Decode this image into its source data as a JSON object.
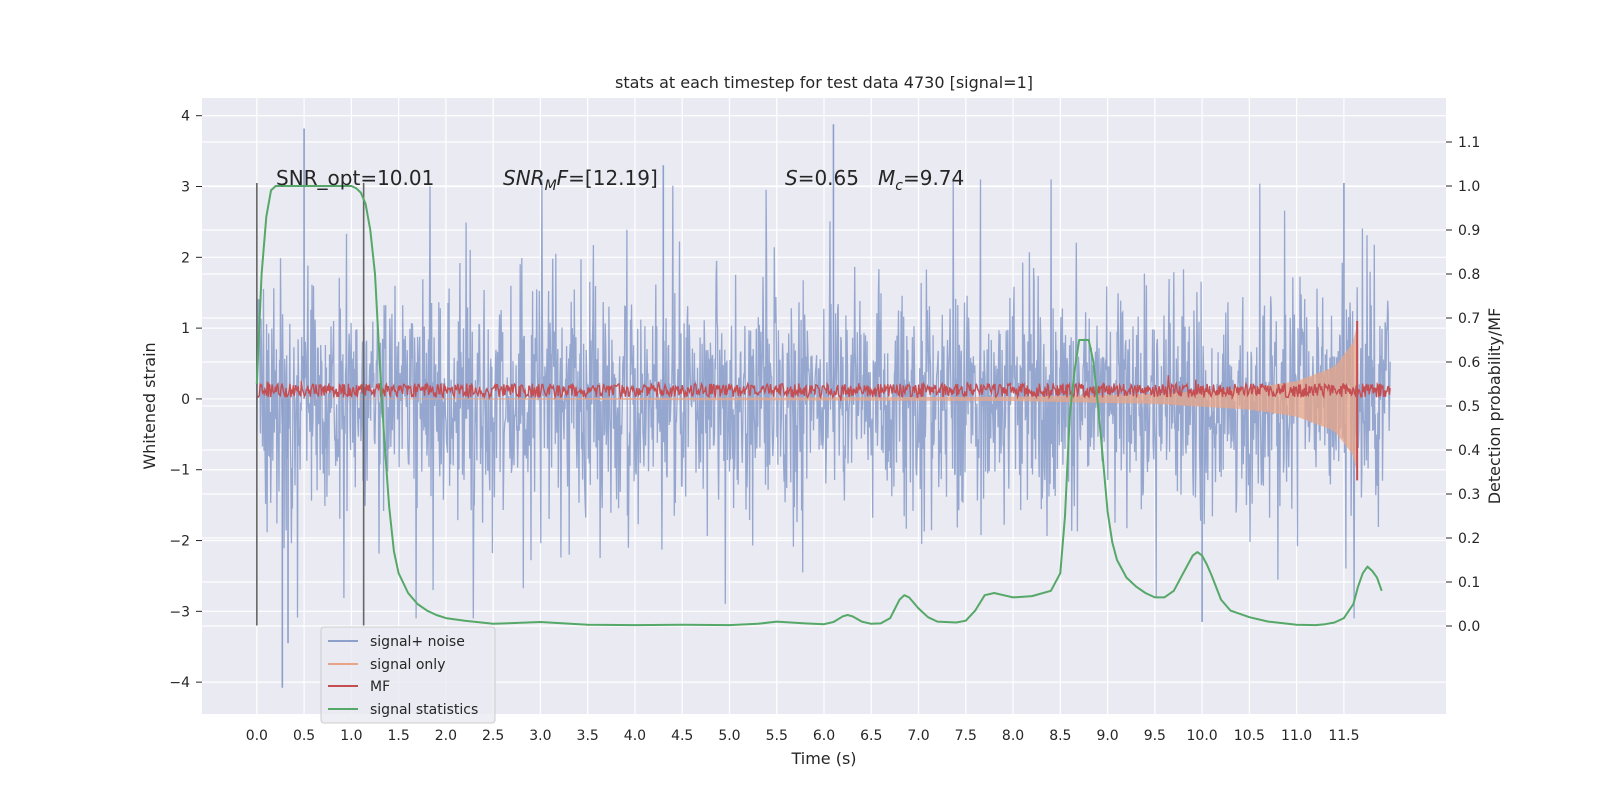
{
  "chart_data": {
    "type": "line",
    "title": "stats at each timestep for test data 4730 [signal=1]",
    "xlabel": "Time (s)",
    "ylabel": "Whitened strain",
    "y2label": "Detection probability/MF",
    "xlim": [
      -0.58,
      12.58
    ],
    "ylim": [
      -4.45,
      4.25
    ],
    "y2lim": [
      -0.2,
      1.2
    ],
    "x_ticks": [
      0.0,
      0.5,
      1.0,
      1.5,
      2.0,
      2.5,
      3.0,
      3.5,
      4.0,
      4.5,
      5.0,
      5.5,
      6.0,
      6.5,
      7.0,
      7.5,
      8.0,
      8.5,
      9.0,
      9.5,
      10.0,
      10.5,
      11.0,
      11.5
    ],
    "x_tick_labels": [
      "0.0",
      "0.5",
      "1.0",
      "1.5",
      "2.0",
      "2.5",
      "3.0",
      "3.5",
      "4.0",
      "4.5",
      "5.0",
      "5.5",
      "6.0",
      "6.5",
      "7.0",
      "7.5",
      "8.0",
      "8.5",
      "9.0",
      "9.5",
      "10.0",
      "10.5",
      "11.0",
      "11.5"
    ],
    "y_ticks": [
      -4,
      -3,
      -2,
      -1,
      0,
      1,
      2,
      3,
      4
    ],
    "y_tick_labels": [
      "−4",
      "−3",
      "−2",
      "−1",
      "0",
      "1",
      "2",
      "3",
      "4"
    ],
    "y2_ticks": [
      0.0,
      0.1,
      0.2,
      0.3,
      0.4,
      0.5,
      0.6,
      0.7,
      0.8,
      0.9,
      1.0,
      1.1
    ],
    "y2_tick_labels": [
      "0.0",
      "0.1",
      "0.2",
      "0.3",
      "0.4",
      "0.5",
      "0.6",
      "0.7",
      "0.8",
      "0.9",
      "1.0",
      "1.1"
    ],
    "grid": true,
    "legend_position": "lower-left",
    "series": [
      {
        "name": "signal+ noise",
        "color": "#8da0cb",
        "axis": "left",
        "x_range": [
          0.0,
          11.99
        ],
        "y_range_typical": [
          -1.3,
          1.3
        ],
        "y_peaks": [
          {
            "x": 0.5,
            "y": 3.82
          },
          {
            "x": 6.1,
            "y": 3.88
          },
          {
            "x": 0.27,
            "y": -4.08
          },
          {
            "x": 0.33,
            "y": -3.45
          },
          {
            "x": 10.0,
            "y": -3.15
          },
          {
            "x": 4.3,
            "y": 3.3
          },
          {
            "x": 11.5,
            "y": 3.05
          }
        ]
      },
      {
        "name": "signal only",
        "color": "#e8a487",
        "axis": "left",
        "x_range": [
          0.0,
          11.65
        ],
        "amplitude_growth": [
          {
            "x": 0.0,
            "y": 0.0
          },
          {
            "x": 8.0,
            "y": 0.03
          },
          {
            "x": 9.5,
            "y": 0.07
          },
          {
            "x": 10.5,
            "y": 0.15
          },
          {
            "x": 11.0,
            "y": 0.25
          },
          {
            "x": 11.4,
            "y": 0.45
          },
          {
            "x": 11.6,
            "y": 0.8
          },
          {
            "x": 11.65,
            "y": 1.1
          }
        ]
      },
      {
        "name": "MF",
        "color": "#c44e52",
        "axis": "left",
        "x_range": [
          0.0,
          11.99
        ],
        "y_center": 0.12,
        "y_half_width": 0.1,
        "spike": {
          "x": 11.64,
          "y_max": 1.1,
          "y_min": -1.15
        }
      },
      {
        "name": "signal statistics",
        "color": "#55a868",
        "axis": "right",
        "x": [
          0.0,
          0.05,
          0.1,
          0.15,
          0.2,
          0.3,
          0.5,
          0.8,
          1.0,
          1.05,
          1.1,
          1.15,
          1.2,
          1.25,
          1.3,
          1.35,
          1.4,
          1.45,
          1.5,
          1.6,
          1.7,
          1.8,
          1.9,
          2.0,
          2.2,
          2.5,
          3.0,
          3.5,
          4.0,
          4.5,
          5.0,
          5.3,
          5.5,
          5.8,
          6.0,
          6.1,
          6.2,
          6.25,
          6.3,
          6.4,
          6.5,
          6.6,
          6.7,
          6.8,
          6.85,
          6.9,
          7.0,
          7.1,
          7.2,
          7.4,
          7.5,
          7.6,
          7.7,
          7.8,
          7.9,
          8.0,
          8.2,
          8.4,
          8.5,
          8.55,
          8.6,
          8.65,
          8.7,
          8.75,
          8.8,
          8.85,
          8.9,
          8.95,
          9.0,
          9.05,
          9.1,
          9.2,
          9.3,
          9.4,
          9.5,
          9.6,
          9.7,
          9.8,
          9.9,
          9.95,
          10.0,
          10.05,
          10.1,
          10.2,
          10.3,
          10.5,
          10.7,
          11.0,
          11.2,
          11.3,
          11.4,
          11.5,
          11.6,
          11.65,
          11.7,
          11.75,
          11.8,
          11.85,
          11.9
        ],
        "y": [
          0.55,
          0.8,
          0.93,
          0.99,
          1.0,
          1.0,
          1.0,
          1.0,
          1.0,
          0.995,
          0.985,
          0.96,
          0.9,
          0.8,
          0.6,
          0.42,
          0.27,
          0.17,
          0.12,
          0.075,
          0.05,
          0.035,
          0.025,
          0.018,
          0.012,
          0.005,
          0.009,
          0.003,
          0.002,
          0.003,
          0.002,
          0.005,
          0.01,
          0.006,
          0.004,
          0.009,
          0.022,
          0.025,
          0.022,
          0.01,
          0.005,
          0.006,
          0.018,
          0.06,
          0.07,
          0.065,
          0.04,
          0.02,
          0.01,
          0.008,
          0.012,
          0.035,
          0.07,
          0.075,
          0.07,
          0.065,
          0.068,
          0.08,
          0.12,
          0.25,
          0.48,
          0.58,
          0.65,
          0.65,
          0.65,
          0.6,
          0.5,
          0.38,
          0.26,
          0.19,
          0.15,
          0.11,
          0.09,
          0.075,
          0.065,
          0.065,
          0.08,
          0.12,
          0.16,
          0.168,
          0.16,
          0.14,
          0.115,
          0.06,
          0.035,
          0.02,
          0.01,
          0.003,
          0.002,
          0.004,
          0.008,
          0.018,
          0.05,
          0.09,
          0.12,
          0.135,
          0.125,
          0.11,
          0.08
        ]
      }
    ],
    "vertical_markers": [
      {
        "x": 0.0,
        "color": "#666666"
      },
      {
        "x": 1.13,
        "color": "#666666"
      }
    ],
    "annotations": [
      {
        "text": "SNR_opt=10.01",
        "x": 0.21,
        "y": 3.1
      },
      {
        "text": "SNR_MF=[12.19]",
        "x": 2.6,
        "y": 3.1
      },
      {
        "text": "S=0.65",
        "x": 5.6,
        "y": 3.1
      },
      {
        "text": "M_c=9.74",
        "x": 6.6,
        "y": 3.1
      }
    ]
  },
  "annotation_display": {
    "snr_opt": "SNR_opt=10.01",
    "snr_mf_italic": "SNR",
    "snr_mf_sub": "M",
    "snr_mf_italic2": "F",
    "snr_mf_rest": "=[12.19]",
    "s_italic": "S",
    "s_rest": "=0.65",
    "mc_italic": "M",
    "mc_sub": "c",
    "mc_rest": "=9.74"
  },
  "legend": {
    "items": [
      {
        "label": "signal+ noise",
        "color": "#8da0cb"
      },
      {
        "label": "signal only",
        "color": "#e8a487"
      },
      {
        "label": "MF",
        "color": "#c44e52"
      },
      {
        "label": "signal statistics",
        "color": "#55a868"
      }
    ]
  }
}
